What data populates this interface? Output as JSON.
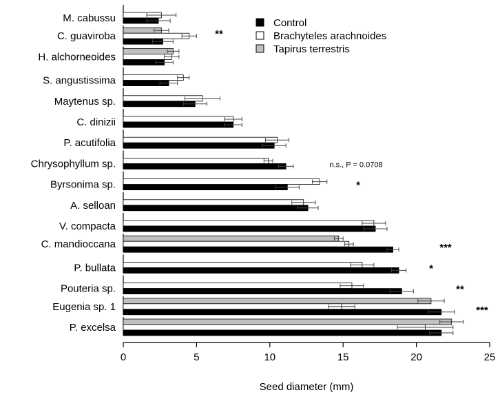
{
  "chart_data": {
    "type": "bar",
    "orientation": "horizontal",
    "title": "",
    "xlabel": "Seed diameter (mm)",
    "ylabel": "",
    "xlim": [
      0,
      25
    ],
    "xticks": [
      "0",
      "5",
      "10",
      "15",
      "20",
      "25"
    ],
    "xtick_values": [
      0,
      5,
      10,
      15,
      20,
      25
    ],
    "grid": false,
    "legend_position": "top-right",
    "series": [
      {
        "name": "Control",
        "color": "#000000"
      },
      {
        "name": "Brachyteles arachnoides",
        "color": "#ffffff"
      },
      {
        "name": "Tapirus terrestris",
        "color": "#c0c0c0"
      }
    ],
    "groups": [
      {
        "category": "M. cabussu",
        "annotation": "",
        "bars": [
          {
            "series": "Brachyteles arachnoides",
            "value": 2.6,
            "error": 1.0
          },
          {
            "series": "Control",
            "value": 2.4,
            "error": 0.8
          }
        ]
      },
      {
        "category": "C. guaviroba",
        "annotation": "**",
        "bars": [
          {
            "series": "Tapirus terrestris",
            "value": 2.6,
            "error": 0.5
          },
          {
            "series": "Brachyteles arachnoides",
            "value": 4.5,
            "error": 0.5
          },
          {
            "series": "Control",
            "value": 2.7,
            "error": 0.7
          }
        ]
      },
      {
        "category": "H. alchorneoides",
        "annotation": "",
        "bars": [
          {
            "series": "Tapirus terrestris",
            "value": 3.4,
            "error": 0.4
          },
          {
            "series": "Brachyteles arachnoides",
            "value": 3.3,
            "error": 0.5
          },
          {
            "series": "Control",
            "value": 2.8,
            "error": 0.6
          }
        ]
      },
      {
        "category": "S. angustissima",
        "annotation": "",
        "bars": [
          {
            "series": "Brachyteles arachnoides",
            "value": 4.1,
            "error": 0.4
          },
          {
            "series": "Control",
            "value": 3.1,
            "error": 0.6
          }
        ]
      },
      {
        "category": "Maytenus sp.",
        "annotation": "",
        "bars": [
          {
            "series": "Brachyteles arachnoides",
            "value": 5.4,
            "error": 1.2
          },
          {
            "series": "Control",
            "value": 4.9,
            "error": 0.8
          }
        ]
      },
      {
        "category": "C. dinizii",
        "annotation": "",
        "bars": [
          {
            "series": "Brachyteles arachnoides",
            "value": 7.5,
            "error": 0.6
          },
          {
            "series": "Control",
            "value": 7.5,
            "error": 0.6
          }
        ]
      },
      {
        "category": "P. acutifolia",
        "annotation": "",
        "bars": [
          {
            "series": "Brachyteles arachnoides",
            "value": 10.5,
            "error": 0.8
          },
          {
            "series": "Control",
            "value": 10.3,
            "error": 0.8
          }
        ]
      },
      {
        "category": "Chrysophyllum sp.",
        "annotation": "n.s., P = 0.0708",
        "bars": [
          {
            "series": "Brachyteles arachnoides",
            "value": 9.9,
            "error": 0.3
          },
          {
            "series": "Control",
            "value": 11.1,
            "error": 0.5
          }
        ]
      },
      {
        "category": "Byrsonima sp.",
        "annotation": "*",
        "bars": [
          {
            "series": "Brachyteles arachnoides",
            "value": 13.4,
            "error": 0.5
          },
          {
            "series": "Control",
            "value": 11.2,
            "error": 0.8
          }
        ]
      },
      {
        "category": "A. selloan",
        "annotation": "",
        "bars": [
          {
            "series": "Brachyteles arachnoides",
            "value": 12.3,
            "error": 0.8
          },
          {
            "series": "Control",
            "value": 12.6,
            "error": 0.7
          }
        ]
      },
      {
        "category": "V. compacta",
        "annotation": "",
        "bars": [
          {
            "series": "Brachyteles arachnoides",
            "value": 17.1,
            "error": 0.8
          },
          {
            "series": "Control",
            "value": 17.2,
            "error": 0.8
          }
        ]
      },
      {
        "category": "C. mandioccana",
        "annotation": "***",
        "bars": [
          {
            "series": "Tapirus terrestris",
            "value": 14.7,
            "error": 0.3
          },
          {
            "series": "Brachyteles arachnoides",
            "value": 15.4,
            "error": 0.3
          },
          {
            "series": "Control",
            "value": 18.4,
            "error": 0.4
          }
        ]
      },
      {
        "category": "P. bullata",
        "annotation": "*",
        "bars": [
          {
            "series": "Brachyteles arachnoides",
            "value": 16.3,
            "error": 0.8
          },
          {
            "series": "Control",
            "value": 18.8,
            "error": 0.5
          }
        ]
      },
      {
        "category": "Pouteria sp.",
        "annotation": "**",
        "bars": [
          {
            "series": "Brachyteles arachnoides",
            "value": 15.6,
            "error": 0.8
          },
          {
            "series": "Control",
            "value": 19.0,
            "error": 0.8
          }
        ]
      },
      {
        "category": "Eugenia sp. 1",
        "annotation": "***",
        "bars": [
          {
            "series": "Tapirus terrestris",
            "value": 21.0,
            "error": 0.9
          },
          {
            "series": "Brachyteles arachnoides",
            "value": 14.9,
            "error": 0.9
          },
          {
            "series": "Control",
            "value": 21.7,
            "error": 0.9
          }
        ]
      },
      {
        "category": "P. excelsa",
        "annotation": "",
        "bars": [
          {
            "series": "Tapirus terrestris",
            "value": 22.4,
            "error": 0.8
          },
          {
            "series": "Brachyteles arachnoides",
            "value": 20.6,
            "error": 1.9
          },
          {
            "series": "Control",
            "value": 21.7,
            "error": 0.8
          }
        ]
      }
    ]
  }
}
